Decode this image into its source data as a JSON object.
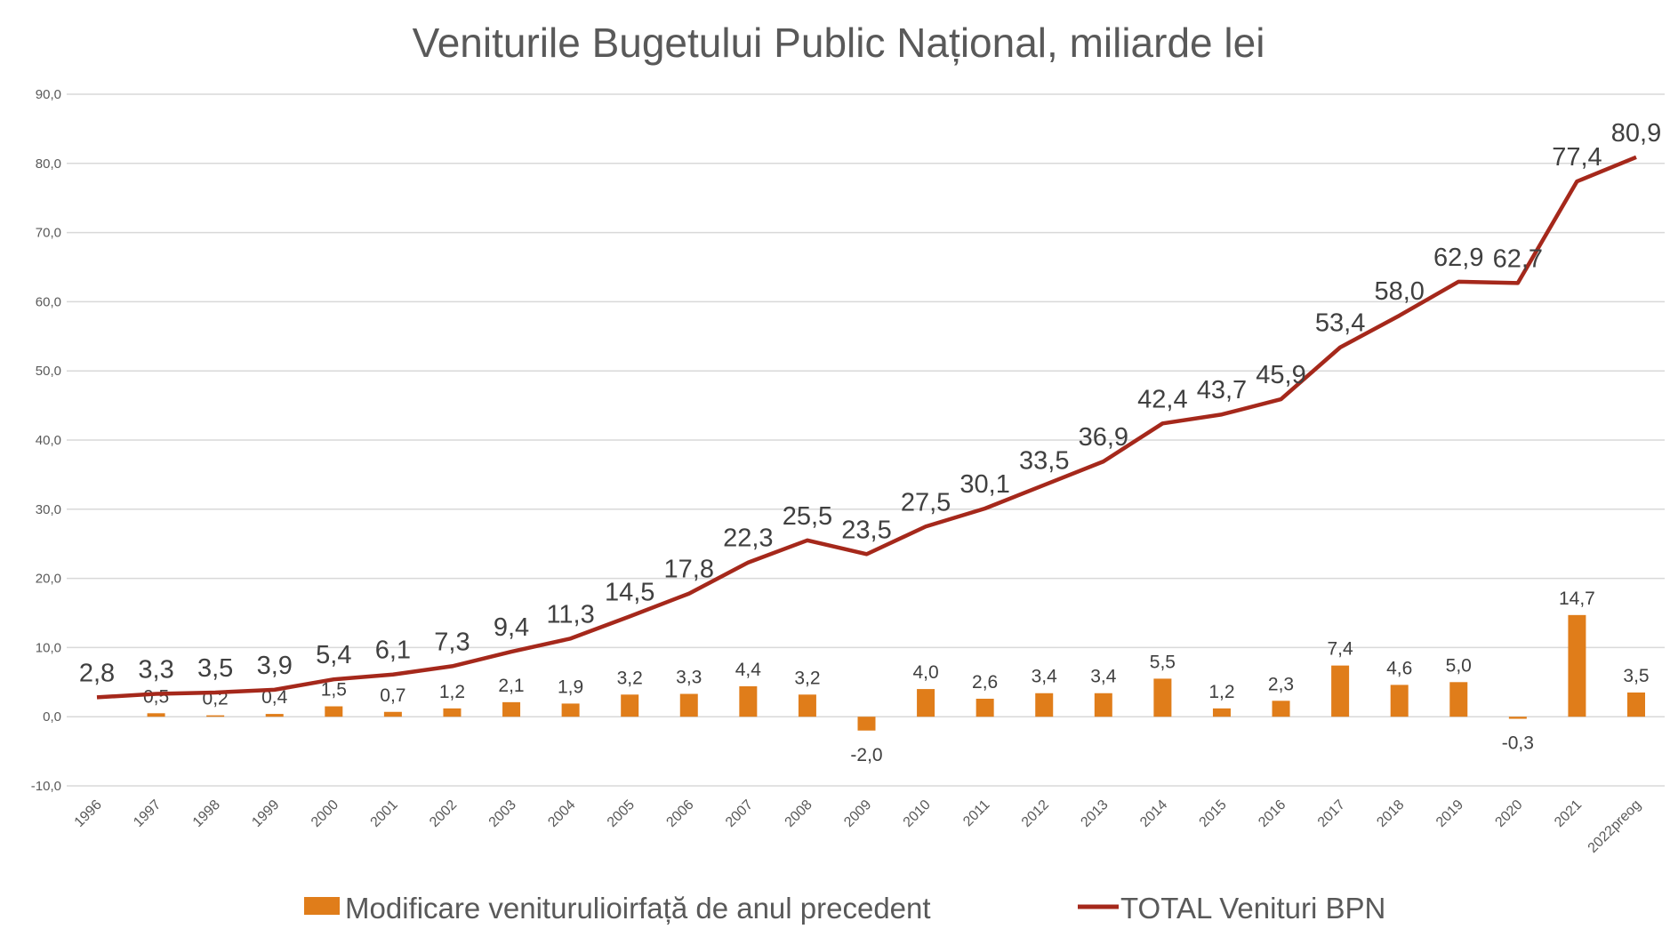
{
  "chart_data": {
    "type": "bar+line",
    "title": "Veniturile Bugetului Public Național, miliarde lei",
    "categories": [
      "1996",
      "1997",
      "1998",
      "1999",
      "2000",
      "2001",
      "2002",
      "2003",
      "2004",
      "2005",
      "2006",
      "2007",
      "2008",
      "2009",
      "2010",
      "2011",
      "2012",
      "2013",
      "2014",
      "2015",
      "2016",
      "2017",
      "2018",
      "2019",
      "2020",
      "2021",
      "2022preog"
    ],
    "series": [
      {
        "name": "Modificare veniturulioirfață de anul precedent",
        "type": "bar",
        "color": "#E07D1A",
        "values": [
          null,
          0.5,
          0.2,
          0.4,
          1.5,
          0.7,
          1.2,
          2.1,
          1.9,
          3.2,
          3.3,
          4.4,
          3.2,
          -2.0,
          4.0,
          2.6,
          3.4,
          3.4,
          5.5,
          1.2,
          2.3,
          7.4,
          4.6,
          5.0,
          -0.3,
          14.7,
          3.5
        ],
        "labels": [
          "",
          "0,5",
          "0,2",
          "0,4",
          "1,5",
          "0,7",
          "1,2",
          "2,1",
          "1,9",
          "3,2",
          "3,3",
          "4,4",
          "3,2",
          "-2,0",
          "4,0",
          "2,6",
          "3,4",
          "3,4",
          "5,5",
          "1,2",
          "2,3",
          "7,4",
          "4,6",
          "5,0",
          "-0,3",
          "14,7",
          "3,5"
        ]
      },
      {
        "name": "TOTAL Venituri BPN",
        "type": "line",
        "color": "#A5281B",
        "values": [
          2.8,
          3.3,
          3.5,
          3.9,
          5.4,
          6.1,
          7.3,
          9.4,
          11.3,
          14.5,
          17.8,
          22.3,
          25.5,
          23.5,
          27.5,
          30.1,
          33.5,
          36.9,
          42.4,
          43.7,
          45.9,
          53.4,
          58.0,
          62.9,
          62.7,
          77.4,
          80.9
        ],
        "labels": [
          "2,8",
          "3,3",
          "3,5",
          "3,9",
          "5,4",
          "6,1",
          "7,3",
          "9,4",
          "11,3",
          "14,5",
          "17,8",
          "22,3",
          "25,5",
          "23,5",
          "27,5",
          "30,1",
          "33,5",
          "36,9",
          "42,4",
          "43,7",
          "45,9",
          "53,4",
          "58,0",
          "62,9",
          "62,7",
          "77,4",
          "80,9"
        ]
      }
    ],
    "ylim": [
      -10,
      90
    ],
    "yticks": [
      "-10,0",
      "0,0",
      "10,0",
      "20,0",
      "30,0",
      "40,0",
      "50,0",
      "60,0",
      "70,0",
      "80,0",
      "90,0"
    ],
    "ytick_values": [
      -10,
      0,
      10,
      20,
      30,
      40,
      50,
      60,
      70,
      80,
      90
    ],
    "grid": true,
    "legend": "bottom",
    "xlabel": "",
    "ylabel": ""
  }
}
